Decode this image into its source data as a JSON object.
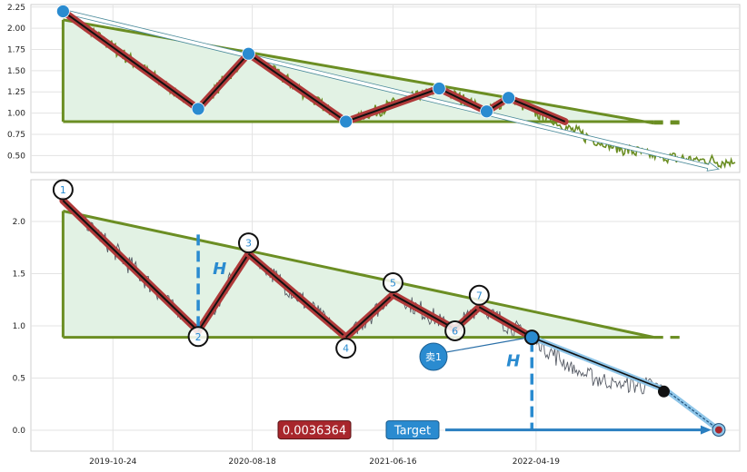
{
  "chart_data": [
    {
      "type": "line",
      "panel": "overview",
      "ylim": [
        0.3,
        2.28
      ],
      "yticks": [
        "2.25",
        "2.00",
        "1.75",
        "1.50",
        "1.25",
        "1.00",
        "0.75",
        "0.50"
      ],
      "ytick_values": [
        2.25,
        2.0,
        1.75,
        1.5,
        1.25,
        1.0,
        0.75,
        0.5
      ],
      "grid": true,
      "colors": {
        "price": "#6b8e23",
        "zigzag": "#b03a3a",
        "pivot": "#2a8bd0",
        "trend": "#6b8e23",
        "fill": "#e2f2e4"
      },
      "pivots": [
        {
          "x": "2019-07-09",
          "y": 2.2
        },
        {
          "x": "2020-04-24",
          "y": 1.05
        },
        {
          "x": "2020-08-10",
          "y": 1.7
        },
        {
          "x": "2021-03-07",
          "y": 0.9
        },
        {
          "x": "2021-09-23",
          "y": 1.29
        },
        {
          "x": "2022-01-03",
          "y": 1.02
        },
        {
          "x": "2022-02-19",
          "y": 1.18
        }
      ],
      "support": 0.9,
      "resistance_start": {
        "x": "2019-07-09",
        "y": 2.1
      },
      "resistance_end": {
        "x": "2022-12-28",
        "y": 0.88
      }
    },
    {
      "type": "line",
      "panel": "pattern",
      "ylim": [
        -0.2,
        2.4
      ],
      "yticks": [
        "2.0",
        "1.5",
        "1.0",
        "0.5",
        "0.0"
      ],
      "ytick_values": [
        2.0,
        1.5,
        1.0,
        0.5,
        0.0
      ],
      "xticks": [
        "2019-10-24",
        "2020-08-18",
        "2021-06-16",
        "2022-04-19"
      ],
      "grid": true,
      "colors": {
        "price": "#555a64",
        "zigzag": "#b03a3a",
        "pivot_ring": "#111111",
        "trend": "#6b8e23",
        "fill": "#e2f2e4",
        "accent": "#2a8bd0"
      },
      "pivots": [
        {
          "label": "1",
          "x": "2019-07-09",
          "y": 2.2
        },
        {
          "label": "2",
          "x": "2020-04-24",
          "y": 0.95
        },
        {
          "label": "3",
          "x": "2020-08-10",
          "y": 1.69
        },
        {
          "label": "4",
          "x": "2021-03-07",
          "y": 0.89
        },
        {
          "label": "5",
          "x": "2021-06-16",
          "y": 1.3
        },
        {
          "label": "6",
          "x": "2021-10-27",
          "y": 0.97
        },
        {
          "label": "7",
          "x": "2021-12-18",
          "y": 1.18
        }
      ],
      "support": 0.89,
      "resistance_start": {
        "x": "2019-07-09",
        "y": 2.1
      },
      "resistance_end": {
        "x": "2022-12-28",
        "y": 0.89
      },
      "pattern_height_label": "H",
      "breakout": {
        "label": "卖1",
        "x": "2022-04-10",
        "y": 0.89
      },
      "projection_mid": {
        "x": "2023-01-24",
        "y": 0.38
      },
      "target": {
        "label": "Target",
        "value_label": "0.0036364",
        "x": "2023-05-16",
        "y": 0.0036364
      }
    }
  ]
}
